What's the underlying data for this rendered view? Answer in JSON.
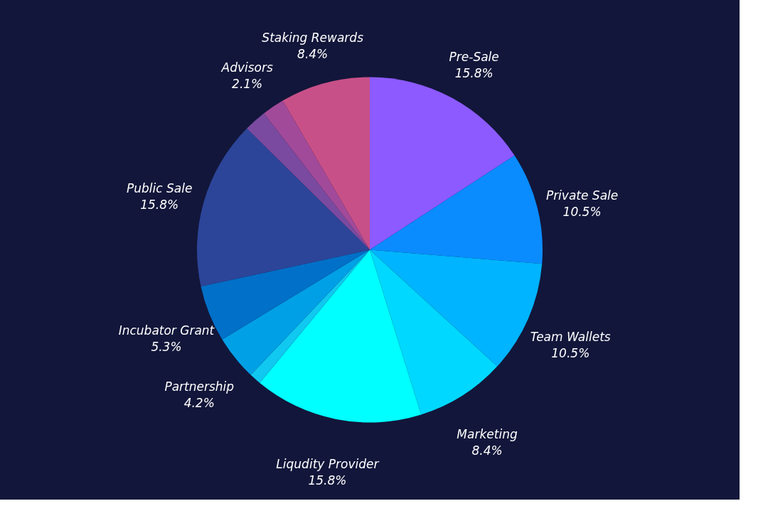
{
  "chart_data": {
    "type": "pie",
    "categories": [
      "Pre-Sale",
      "Private Sale",
      "Team Wallets",
      "Marketing",
      "Liqudity Provider",
      null,
      "Partnership",
      "Incubator Grant",
      "Public Sale",
      null,
      "Advisors",
      "Staking Rewards"
    ],
    "values": [
      15.8,
      10.5,
      10.5,
      8.4,
      15.8,
      1.1,
      4.2,
      5.3,
      15.8,
      2.1,
      2.1,
      8.4
    ],
    "value_labels": [
      "15.8%",
      "10.5%",
      "10.5%",
      "8.4%",
      "15.8%",
      null,
      "4.2%",
      "5.3%",
      "15.8%",
      null,
      "2.1%",
      "8.4%"
    ],
    "colors": [
      "#8c5aff",
      "#0a8cff",
      "#00b4ff",
      "#00d8ff",
      "#00ffff",
      "#10c8f0",
      "#00a0e6",
      "#0070c8",
      "#2c4599",
      "#7a4aa0",
      "#a24a9a",
      "#c85088"
    ],
    "legend": false
  }
}
